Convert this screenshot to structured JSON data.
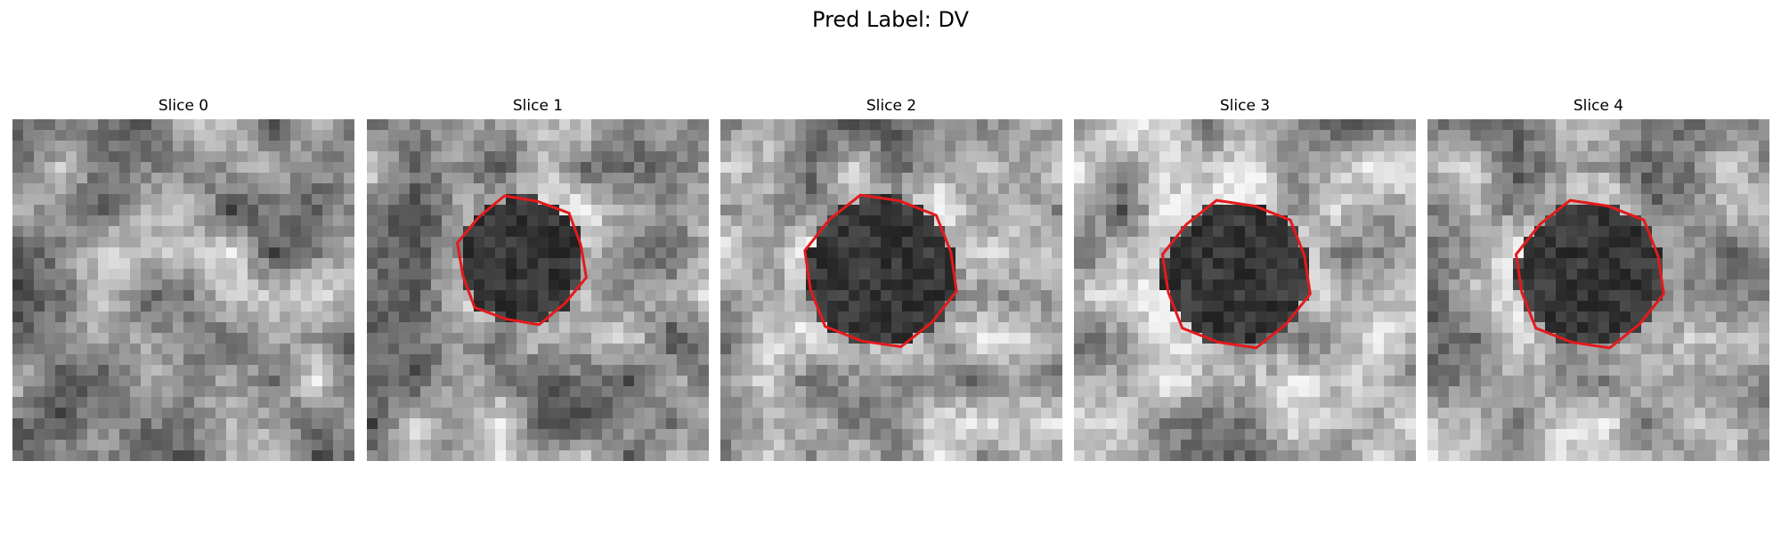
{
  "figure": {
    "title": "Pred Label: DV"
  },
  "panels": [
    {
      "title": "Slice 0",
      "has_contour": false,
      "base_tone": 150,
      "seed": 11
    },
    {
      "title": "Slice 1",
      "has_contour": true,
      "base_tone": 150,
      "seed": 23
    },
    {
      "title": "Slice 2",
      "has_contour": true,
      "base_tone": 165,
      "seed": 37
    },
    {
      "title": "Slice 3",
      "has_contour": true,
      "base_tone": 165,
      "seed": 41
    },
    {
      "title": "Slice 4",
      "has_contour": true,
      "base_tone": 165,
      "seed": 53
    }
  ],
  "colors": {
    "contour": "#e41a1c",
    "background": "#ffffff"
  }
}
